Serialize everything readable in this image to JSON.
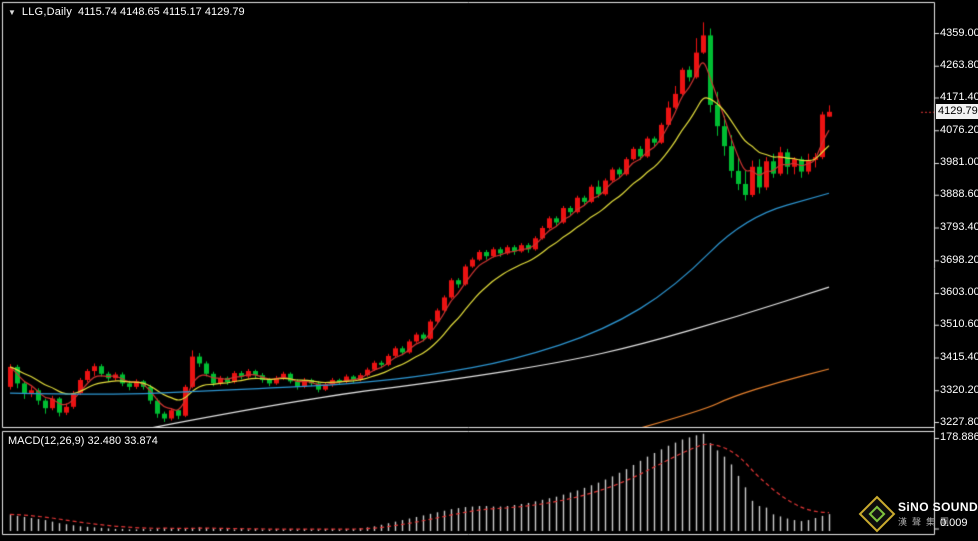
{
  "window": {
    "bg": "#000000",
    "frame_color": "#e8e8e8"
  },
  "header": {
    "collapse_icon": "▼",
    "symbol": "LLG,Daily",
    "ohlc": "4115.74 4148.65 4115.17 4129.79",
    "open": "4115.74",
    "high": "4148.65",
    "low": "4115.17",
    "close": "4129.79"
  },
  "price_axis": {
    "labels": [
      "4359.00",
      "4263.80",
      "4171.40",
      "4076.20",
      "3981.00",
      "3888.60",
      "3793.40",
      "3698.20",
      "3603.00",
      "3510.60",
      "3415.40",
      "3320.20",
      "3227.80"
    ],
    "current_price": "4129.79"
  },
  "macd_panel": {
    "label": "MACD(12,26,9) 32.480 33.874",
    "axis_max_label": "178.886",
    "axis_min_label": "0.009"
  },
  "logo": {
    "brand": "SiNO SOUND",
    "brand_cn": "漢聲集團"
  },
  "colors": {
    "up_candle": "#ec1212",
    "down_candle": "#00bd32",
    "ma_fast": "#cd3431",
    "ma_mid": "#e4df3c",
    "ma_slow": "#2d96d2",
    "ma_slower": "#e6e6e6",
    "ma_slowest": "#e8822e",
    "macd_bar": "#cccccc",
    "macd_signal": "#e03636",
    "frame": "#e8e8e8",
    "text": "#ffffff",
    "cur_tag_bg": "#f2f2f2"
  },
  "chart_data": {
    "type": "candlestick",
    "symbol": "LLG",
    "timeframe": "Daily",
    "grid": false,
    "price_range_ticks": [
      4359.0,
      3227.8
    ],
    "candles": [
      [
        3330,
        3396,
        3322,
        3388
      ],
      [
        3388,
        3394,
        3326,
        3340
      ],
      [
        3340,
        3346,
        3295,
        3310
      ],
      [
        3310,
        3330,
        3300,
        3320
      ],
      [
        3320,
        3326,
        3278,
        3290
      ],
      [
        3290,
        3296,
        3252,
        3268
      ],
      [
        3268,
        3304,
        3262,
        3296
      ],
      [
        3296,
        3300,
        3244,
        3255
      ],
      [
        3255,
        3282,
        3248,
        3272
      ],
      [
        3272,
        3318,
        3266,
        3312
      ],
      [
        3312,
        3356,
        3306,
        3350
      ],
      [
        3350,
        3382,
        3344,
        3376
      ],
      [
        3376,
        3398,
        3362,
        3390
      ],
      [
        3390,
        3396,
        3360,
        3368
      ],
      [
        3368,
        3374,
        3346,
        3355
      ],
      [
        3355,
        3372,
        3348,
        3366
      ],
      [
        3366,
        3372,
        3332,
        3340
      ],
      [
        3340,
        3348,
        3320,
        3330
      ],
      [
        3330,
        3352,
        3324,
        3346
      ],
      [
        3346,
        3350,
        3322,
        3330
      ],
      [
        3330,
        3336,
        3280,
        3290
      ],
      [
        3290,
        3296,
        3240,
        3252
      ],
      [
        3252,
        3258,
        3228,
        3238
      ],
      [
        3238,
        3268,
        3232,
        3262
      ],
      [
        3262,
        3266,
        3236,
        3246
      ],
      [
        3246,
        3336,
        3242,
        3330
      ],
      [
        3330,
        3436,
        3326,
        3418
      ],
      [
        3418,
        3428,
        3388,
        3398
      ],
      [
        3398,
        3404,
        3360,
        3368
      ],
      [
        3368,
        3374,
        3332,
        3340
      ],
      [
        3340,
        3362,
        3334,
        3356
      ],
      [
        3356,
        3360,
        3336,
        3344
      ],
      [
        3344,
        3376,
        3340,
        3370
      ],
      [
        3370,
        3376,
        3352,
        3360
      ],
      [
        3360,
        3382,
        3354,
        3376
      ],
      [
        3376,
        3380,
        3356,
        3364
      ],
      [
        3364,
        3370,
        3342,
        3350
      ],
      [
        3350,
        3356,
        3332,
        3340
      ],
      [
        3340,
        3362,
        3336,
        3356
      ],
      [
        3356,
        3374,
        3350,
        3368
      ],
      [
        3368,
        3372,
        3340,
        3346
      ],
      [
        3346,
        3352,
        3322,
        3330
      ],
      [
        3330,
        3356,
        3326,
        3350
      ],
      [
        3350,
        3354,
        3332,
        3340
      ],
      [
        3340,
        3346,
        3314,
        3322
      ],
      [
        3322,
        3342,
        3318,
        3336
      ],
      [
        3336,
        3356,
        3330,
        3350
      ],
      [
        3350,
        3354,
        3336,
        3344
      ],
      [
        3344,
        3366,
        3340,
        3360
      ],
      [
        3360,
        3364,
        3342,
        3350
      ],
      [
        3350,
        3370,
        3346,
        3364
      ],
      [
        3364,
        3386,
        3360,
        3380
      ],
      [
        3380,
        3406,
        3376,
        3400
      ],
      [
        3400,
        3406,
        3384,
        3394
      ],
      [
        3394,
        3426,
        3390,
        3420
      ],
      [
        3420,
        3448,
        3416,
        3442
      ],
      [
        3442,
        3448,
        3422,
        3430
      ],
      [
        3430,
        3468,
        3426,
        3462
      ],
      [
        3462,
        3488,
        3458,
        3482
      ],
      [
        3482,
        3488,
        3462,
        3470
      ],
      [
        3470,
        3526,
        3466,
        3520
      ],
      [
        3520,
        3558,
        3516,
        3552
      ],
      [
        3552,
        3596,
        3548,
        3590
      ],
      [
        3590,
        3646,
        3586,
        3640
      ],
      [
        3640,
        3646,
        3618,
        3628
      ],
      [
        3628,
        3686,
        3624,
        3680
      ],
      [
        3680,
        3706,
        3676,
        3700
      ],
      [
        3700,
        3728,
        3696,
        3722
      ],
      [
        3722,
        3728,
        3700,
        3710
      ],
      [
        3710,
        3736,
        3706,
        3730
      ],
      [
        3730,
        3736,
        3708,
        3718
      ],
      [
        3718,
        3742,
        3714,
        3736
      ],
      [
        3736,
        3742,
        3714,
        3724
      ],
      [
        3724,
        3748,
        3720,
        3742
      ],
      [
        3742,
        3748,
        3720,
        3730
      ],
      [
        3730,
        3768,
        3726,
        3762
      ],
      [
        3762,
        3798,
        3758,
        3792
      ],
      [
        3792,
        3826,
        3788,
        3820
      ],
      [
        3820,
        3826,
        3798,
        3808
      ],
      [
        3808,
        3856,
        3804,
        3850
      ],
      [
        3850,
        3856,
        3828,
        3838
      ],
      [
        3838,
        3886,
        3834,
        3880
      ],
      [
        3880,
        3886,
        3858,
        3868
      ],
      [
        3868,
        3918,
        3864,
        3912
      ],
      [
        3912,
        3930,
        3880,
        3890
      ],
      [
        3890,
        3936,
        3886,
        3930
      ],
      [
        3930,
        3968,
        3926,
        3962
      ],
      [
        3962,
        3968,
        3938,
        3948
      ],
      [
        3948,
        3998,
        3944,
        3992
      ],
      [
        3992,
        4028,
        3988,
        4022
      ],
      [
        4022,
        4030,
        3990,
        4000
      ],
      [
        4000,
        4058,
        3996,
        4052
      ],
      [
        4052,
        4058,
        4028,
        4040
      ],
      [
        4040,
        4098,
        4036,
        4092
      ],
      [
        4092,
        4160,
        4088,
        4142
      ],
      [
        4142,
        4205,
        4138,
        4182
      ],
      [
        4182,
        4258,
        4178,
        4252
      ],
      [
        4252,
        4262,
        4218,
        4230
      ],
      [
        4230,
        4344,
        4226,
        4302
      ],
      [
        4302,
        4390,
        4298,
        4352
      ],
      [
        4352,
        4372,
        4128,
        4150
      ],
      [
        4150,
        4188,
        4060,
        4088
      ],
      [
        4088,
        4118,
        4002,
        4030
      ],
      [
        4030,
        4062,
        3938,
        3958
      ],
      [
        3958,
        3998,
        3902,
        3920
      ],
      [
        3920,
        3958,
        3872,
        3888
      ],
      [
        3888,
        3988,
        3882,
        3970
      ],
      [
        3970,
        3992,
        3892,
        3910
      ],
      [
        3910,
        3998,
        3902,
        3986
      ],
      [
        3986,
        4008,
        3938,
        3950
      ],
      [
        3950,
        4028,
        3944,
        4012
      ],
      [
        4012,
        4022,
        3948,
        3970
      ],
      [
        3970,
        3998,
        3948,
        3992
      ],
      [
        3992,
        4000,
        3938,
        3956
      ],
      [
        3956,
        4008,
        3948,
        3990
      ],
      [
        3990,
        4010,
        3968,
        3998
      ],
      [
        3998,
        4130,
        3992,
        4122
      ],
      [
        4115.74,
        4148.65,
        4115.17,
        4129.79
      ]
    ],
    "overlays": [
      {
        "name": "ma-fast",
        "style": "ema",
        "period": 4,
        "color_key": "ma_fast"
      },
      {
        "name": "ma-mid",
        "style": "ema",
        "period": 11,
        "color_key": "ma_mid"
      },
      {
        "name": "ma-slow",
        "style": "points",
        "color_key": "ma_slow",
        "points": [
          [
            0,
            3312
          ],
          [
            14,
            3306
          ],
          [
            28,
            3318
          ],
          [
            43,
            3332
          ],
          [
            50,
            3341
          ],
          [
            60,
            3364
          ],
          [
            72,
            3408
          ],
          [
            85,
            3495
          ],
          [
            95,
            3620
          ],
          [
            105,
            3824
          ],
          [
            117,
            3893
          ]
        ]
      },
      {
        "name": "ma-slower",
        "style": "points",
        "color_key": "ma_slower",
        "points": [
          [
            20,
            3210
          ],
          [
            41,
            3292
          ],
          [
            63,
            3350
          ],
          [
            79,
            3402
          ],
          [
            90,
            3452
          ],
          [
            104,
            3535
          ],
          [
            117,
            3620
          ]
        ]
      },
      {
        "name": "ma-slowest",
        "style": "points",
        "color_key": "ma_slowest",
        "points": [
          [
            90,
            3210
          ],
          [
            99,
            3262
          ],
          [
            103,
            3300
          ],
          [
            110,
            3345
          ],
          [
            117,
            3382
          ]
        ]
      }
    ],
    "macd": {
      "params": "12,26,9",
      "macd_value": 32.48,
      "signal_value": 33.874,
      "signal_period": 9,
      "axis_max": 178.886,
      "axis_min": 0.009,
      "histogram": [
        32,
        29,
        27,
        25,
        23,
        21,
        18,
        15,
        13,
        11,
        9,
        8,
        7,
        6,
        5,
        4,
        4,
        3,
        3,
        4,
        3,
        5,
        6,
        5,
        4,
        4,
        6,
        7,
        6,
        5,
        4,
        4,
        3,
        4,
        3,
        4,
        3,
        3,
        4,
        3,
        4,
        3,
        4,
        3,
        3,
        4,
        4,
        3,
        4,
        4,
        5,
        7,
        9,
        12,
        15,
        18,
        21,
        24,
        27,
        30,
        33,
        36,
        39,
        42,
        44,
        46,
        47,
        48,
        48,
        47,
        47,
        48,
        50,
        52,
        54,
        57,
        60,
        63,
        66,
        70,
        74,
        78,
        83,
        88,
        93,
        99,
        105,
        112,
        119,
        127,
        135,
        143,
        150,
        157,
        164,
        170,
        176,
        180,
        184,
        187,
        169,
        155,
        143,
        128,
        106,
        84,
        58,
        48,
        45,
        32,
        28,
        24,
        21,
        19,
        21,
        25,
        29,
        32.5
      ]
    }
  }
}
